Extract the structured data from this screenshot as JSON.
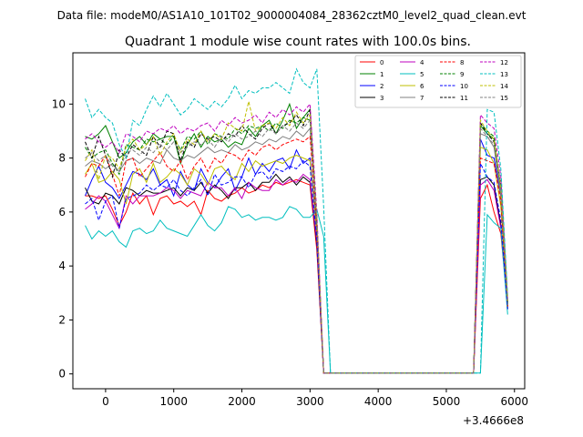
{
  "figure": {
    "suptitle": "Data file: modeM0/AS1A10_101T02_9000004084_28362cztM0_level2_quad_clean.evt",
    "title": "Quadrant 1 module wise count rates with 100.0s bins."
  },
  "chart_data": {
    "type": "line",
    "title": "Quadrant 1 module wise count rates with 100.0s bins.",
    "xlabel": "",
    "ylabel": "",
    "x_offset_label": "+3.4666e8",
    "xlim": [
      -480,
      6150
    ],
    "ylim": [
      -0.55,
      11.9
    ],
    "xticks": [
      0,
      1000,
      2000,
      3000,
      4000,
      5000,
      6000
    ],
    "yticks": [
      0,
      2,
      4,
      6,
      8,
      10
    ],
    "grid": false,
    "legend_position": "top-right",
    "legend_columns": 4,
    "x": [
      -300,
      -200,
      -100,
      0,
      100,
      200,
      300,
      400,
      500,
      600,
      700,
      800,
      900,
      1000,
      1100,
      1200,
      1300,
      1400,
      1500,
      1600,
      1700,
      1800,
      1900,
      2000,
      2100,
      2200,
      2300,
      2400,
      2500,
      2600,
      2700,
      2800,
      2900,
      3000,
      3100,
      3200,
      3300,
      5400,
      5500,
      5600,
      5700,
      5800,
      5900
    ],
    "series": [
      {
        "name": "0",
        "color": "#ff0000",
        "dash": "solid",
        "values": [
          6.6,
          6.6,
          6.5,
          6.6,
          6.1,
          5.5,
          6.0,
          6.7,
          6.3,
          6.6,
          5.9,
          6.5,
          6.6,
          6.3,
          6.4,
          6.2,
          6.4,
          5.9,
          6.8,
          6.5,
          6.4,
          6.6,
          6.7,
          6.9,
          6.7,
          6.8,
          7.0,
          6.9,
          7.1,
          7.0,
          7.1,
          7.2,
          7.1,
          7.0,
          4.6,
          0.03,
          0.03,
          0.03,
          6.5,
          7.0,
          6.0,
          5.2,
          2.5
        ]
      },
      {
        "name": "1",
        "color": "#008000",
        "dash": "solid",
        "values": [
          8.8,
          8.7,
          8.9,
          9.2,
          8.6,
          8.0,
          8.2,
          8.6,
          8.8,
          8.5,
          8.9,
          8.7,
          8.8,
          8.8,
          7.8,
          8.5,
          8.9,
          8.4,
          8.8,
          8.6,
          8.7,
          8.4,
          8.6,
          8.5,
          9.1,
          8.8,
          9.2,
          9.4,
          8.9,
          9.4,
          10.0,
          9.1,
          9.5,
          9.8,
          5.5,
          0.03,
          0.03,
          0.03,
          9.2,
          8.9,
          8.7,
          6.7,
          2.6
        ]
      },
      {
        "name": "2",
        "color": "#0000ff",
        "dash": "solid",
        "values": [
          6.6,
          7.2,
          7.7,
          7.1,
          6.9,
          6.5,
          7.0,
          7.5,
          7.4,
          7.2,
          7.6,
          7.0,
          7.2,
          6.6,
          7.5,
          7.0,
          6.8,
          7.6,
          7.1,
          6.9,
          7.3,
          7.6,
          6.8,
          7.3,
          8.0,
          7.4,
          7.8,
          7.5,
          7.9,
          8.0,
          7.6,
          8.3,
          7.8,
          8.0,
          5.3,
          0.03,
          0.03,
          0.03,
          8.7,
          8.1,
          8.0,
          6.6,
          2.5
        ]
      },
      {
        "name": "3",
        "color": "#000000",
        "dash": "solid",
        "values": [
          6.9,
          6.4,
          6.3,
          6.7,
          6.6,
          6.3,
          6.9,
          6.8,
          6.6,
          6.8,
          6.7,
          6.7,
          6.8,
          6.9,
          6.6,
          6.9,
          6.8,
          7.1,
          6.7,
          7.0,
          6.8,
          6.5,
          6.9,
          6.9,
          7.1,
          6.8,
          7.1,
          7.1,
          7.4,
          7.1,
          7.3,
          7.0,
          7.3,
          7.1,
          4.8,
          0.03,
          0.03,
          0.03,
          7.2,
          7.3,
          7.0,
          5.5,
          2.4
        ]
      },
      {
        "name": "4",
        "color": "#bf00bf",
        "dash": "solid",
        "values": [
          6.1,
          6.3,
          6.6,
          6.4,
          5.9,
          5.4,
          6.6,
          6.3,
          6.6,
          6.6,
          6.6,
          6.7,
          6.9,
          6.8,
          6.5,
          6.8,
          6.7,
          6.6,
          7.1,
          6.9,
          6.9,
          6.6,
          6.9,
          6.5,
          7.1,
          6.9,
          6.8,
          6.8,
          7.2,
          7.0,
          7.2,
          7.1,
          7.4,
          7.2,
          4.9,
          0.03,
          0.03,
          0.03,
          7.0,
          7.2,
          6.8,
          5.4,
          2.5
        ]
      },
      {
        "name": "5",
        "color": "#00bfbf",
        "dash": "solid",
        "values": [
          5.5,
          5.0,
          5.3,
          5.1,
          5.3,
          4.9,
          4.7,
          5.3,
          5.4,
          5.2,
          5.3,
          5.7,
          5.4,
          5.3,
          5.2,
          5.1,
          5.5,
          5.9,
          5.5,
          5.3,
          5.6,
          6.2,
          6.1,
          5.8,
          5.9,
          5.7,
          5.8,
          5.8,
          5.7,
          5.8,
          6.2,
          6.1,
          5.8,
          5.8,
          6.1,
          5.1,
          0.03,
          0.03,
          0.03,
          5.9,
          5.6,
          5.4,
          2.2
        ]
      },
      {
        "name": "6",
        "color": "#bfbf00",
        "dash": "solid",
        "values": [
          7.4,
          7.8,
          7.1,
          7.2,
          7.5,
          7.2,
          6.3,
          7.4,
          7.6,
          7.1,
          7.8,
          7.1,
          7.3,
          7.6,
          7.4,
          7.0,
          7.6,
          7.4,
          7.0,
          7.6,
          7.7,
          7.4,
          7.2,
          7.8,
          7.5,
          7.9,
          7.7,
          7.8,
          7.9,
          7.8,
          8.0,
          8.1,
          8.0,
          7.9,
          5.2,
          0.03,
          0.03,
          0.03,
          8.4,
          8.3,
          7.8,
          6.2,
          2.5
        ]
      },
      {
        "name": "7",
        "color": "#808080",
        "dash": "solid",
        "values": [
          7.7,
          7.9,
          7.8,
          7.6,
          7.8,
          7.5,
          7.9,
          8.0,
          7.8,
          8.0,
          7.9,
          7.8,
          8.3,
          8.0,
          7.9,
          8.1,
          8.0,
          8.2,
          8.4,
          8.2,
          8.3,
          8.2,
          8.5,
          8.3,
          8.4,
          8.6,
          8.5,
          8.7,
          8.6,
          8.8,
          8.7,
          9.0,
          8.8,
          9.1,
          5.6,
          0.03,
          0.03,
          0.03,
          8.9,
          8.8,
          8.4,
          6.6,
          2.6
        ]
      },
      {
        "name": "8",
        "color": "#ff0000",
        "dash": "dashed",
        "values": [
          7.3,
          7.8,
          7.7,
          8.1,
          7.4,
          6.6,
          7.9,
          8.0,
          7.3,
          7.6,
          7.9,
          8.2,
          7.7,
          7.5,
          7.9,
          7.2,
          7.7,
          8.0,
          7.5,
          8.0,
          7.8,
          8.2,
          8.1,
          7.9,
          8.3,
          8.1,
          8.4,
          8.5,
          8.3,
          8.5,
          8.6,
          8.7,
          8.6,
          8.8,
          5.5,
          0.03,
          0.03,
          0.03,
          8.0,
          7.9,
          7.8,
          6.4,
          2.5
        ]
      },
      {
        "name": "9",
        "color": "#008000",
        "dash": "dashed",
        "values": [
          8.4,
          8.0,
          8.2,
          8.3,
          7.8,
          7.4,
          8.5,
          8.4,
          8.3,
          8.7,
          8.6,
          8.7,
          8.5,
          8.8,
          8.3,
          8.8,
          8.7,
          9.0,
          8.5,
          8.9,
          8.8,
          8.7,
          9.1,
          8.9,
          9.2,
          9.1,
          9.2,
          9.0,
          9.3,
          9.1,
          9.4,
          9.3,
          9.5,
          9.4,
          5.6,
          0.03,
          0.03,
          0.03,
          9.3,
          9.0,
          8.8,
          6.8,
          2.6
        ]
      },
      {
        "name": "10",
        "color": "#0000ff",
        "dash": "dashed",
        "values": [
          6.3,
          6.5,
          5.7,
          6.4,
          6.6,
          5.4,
          6.5,
          6.6,
          6.7,
          7.0,
          6.8,
          7.0,
          6.9,
          7.2,
          6.8,
          6.6,
          6.9,
          7.2,
          6.6,
          7.4,
          7.0,
          7.1,
          7.3,
          7.3,
          6.9,
          7.4,
          7.5,
          7.2,
          7.6,
          7.5,
          7.7,
          7.6,
          7.9,
          7.7,
          5.0,
          0.03,
          0.03,
          0.03,
          7.8,
          7.3,
          7.1,
          5.7,
          2.4
        ]
      },
      {
        "name": "11",
        "color": "#000000",
        "dash": "dashed",
        "values": [
          8.6,
          8.0,
          8.8,
          8.1,
          7.3,
          8.3,
          8.0,
          8.5,
          8.3,
          8.1,
          8.8,
          8.4,
          9.0,
          8.9,
          7.9,
          8.6,
          8.4,
          8.9,
          8.7,
          8.8,
          8.6,
          8.9,
          8.8,
          9.2,
          8.9,
          8.7,
          9.1,
          9.3,
          8.9,
          9.2,
          9.3,
          9.6,
          9.2,
          9.8,
          5.7,
          0.03,
          0.03,
          0.03,
          9.3,
          8.9,
          8.6,
          7.0,
          2.7
        ]
      },
      {
        "name": "12",
        "color": "#bf00bf",
        "dash": "dashed",
        "values": [
          8.7,
          8.9,
          8.6,
          8.4,
          8.6,
          8.2,
          8.9,
          8.8,
          8.6,
          9.0,
          8.9,
          9.1,
          9.0,
          9.2,
          8.9,
          9.1,
          9.0,
          9.2,
          9.3,
          9.0,
          9.4,
          9.2,
          9.5,
          9.3,
          9.4,
          9.6,
          9.3,
          9.7,
          9.5,
          9.8,
          9.6,
          9.9,
          9.7,
          10.0,
          6.0,
          0.03,
          0.03,
          0.03,
          9.6,
          9.3,
          9.1,
          7.3,
          2.8
        ]
      },
      {
        "name": "13",
        "color": "#00bfbf",
        "dash": "dashed",
        "values": [
          10.2,
          9.5,
          9.8,
          9.5,
          9.3,
          8.5,
          8.0,
          9.4,
          9.2,
          9.8,
          10.3,
          9.9,
          10.4,
          10.0,
          9.6,
          9.8,
          10.2,
          10.0,
          9.8,
          10.1,
          9.9,
          10.2,
          10.7,
          10.2,
          10.5,
          10.4,
          10.6,
          10.6,
          10.8,
          10.6,
          10.4,
          11.3,
          10.8,
          10.6,
          11.3,
          6.2,
          0.03,
          0.03,
          0.03,
          9.8,
          9.7,
          7.6,
          2.9
        ]
      },
      {
        "name": "14",
        "color": "#bfbf00",
        "dash": "dashed",
        "values": [
          7.9,
          8.3,
          7.2,
          8.1,
          8.0,
          7.6,
          8.4,
          8.7,
          8.3,
          8.5,
          8.8,
          8.1,
          8.6,
          8.9,
          8.2,
          8.7,
          8.5,
          9.0,
          8.6,
          8.9,
          8.7,
          9.3,
          9.1,
          9.0,
          10.1,
          9.0,
          9.2,
          9.3,
          9.1,
          9.5,
          9.2,
          9.7,
          9.3,
          9.6,
          5.8,
          0.03,
          0.03,
          0.03,
          9.4,
          9.0,
          8.7,
          6.9,
          2.7
        ]
      },
      {
        "name": "15",
        "color": "#808080",
        "dash": "dashed",
        "values": [
          8.0,
          8.2,
          7.9,
          8.1,
          7.7,
          7.5,
          8.2,
          8.3,
          8.1,
          8.4,
          8.2,
          8.5,
          8.3,
          8.6,
          8.2,
          8.4,
          8.6,
          8.5,
          8.7,
          8.4,
          8.8,
          8.6,
          8.9,
          8.7,
          8.8,
          9.0,
          8.8,
          9.1,
          8.9,
          9.2,
          9.0,
          9.3,
          9.1,
          9.4,
          5.7,
          0.03,
          0.03,
          0.03,
          9.1,
          8.8,
          8.5,
          6.8,
          2.6
        ]
      }
    ]
  }
}
